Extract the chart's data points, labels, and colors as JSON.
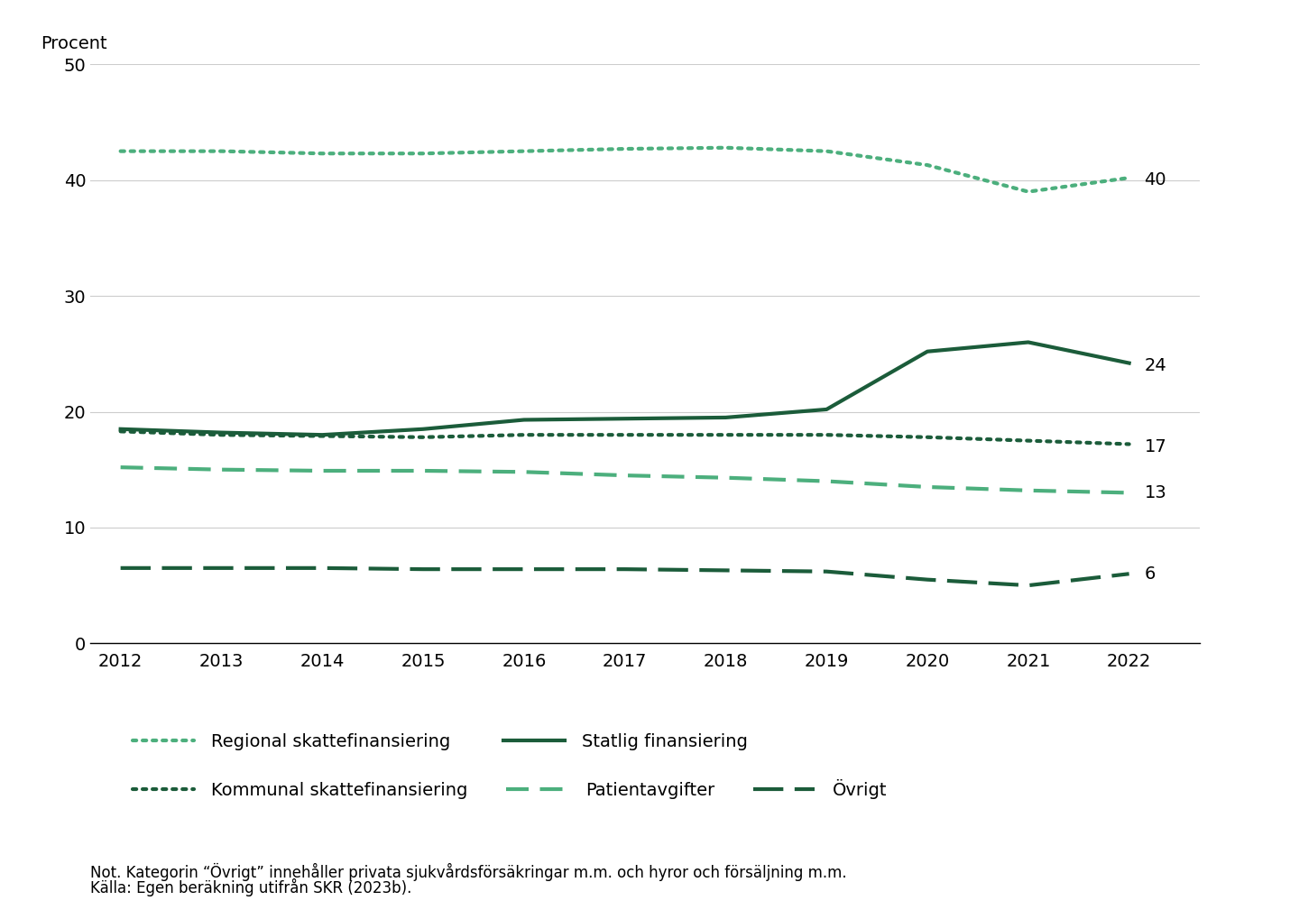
{
  "years": [
    2012,
    2013,
    2014,
    2015,
    2016,
    2017,
    2018,
    2019,
    2020,
    2021,
    2022
  ],
  "regional_skatt": [
    42.5,
    42.5,
    42.3,
    42.3,
    42.5,
    42.7,
    42.8,
    42.5,
    41.3,
    39.0,
    40.2
  ],
  "statlig": [
    18.5,
    18.2,
    18.0,
    18.5,
    19.3,
    19.4,
    19.5,
    20.2,
    25.2,
    26.0,
    24.2
  ],
  "kommunal_skatt": [
    18.3,
    18.0,
    17.9,
    17.8,
    18.0,
    18.0,
    18.0,
    18.0,
    17.8,
    17.5,
    17.2
  ],
  "patientavgifter": [
    15.2,
    15.0,
    14.9,
    14.9,
    14.8,
    14.5,
    14.3,
    14.0,
    13.5,
    13.2,
    13.0
  ],
  "ovrigt": [
    6.5,
    6.5,
    6.5,
    6.4,
    6.4,
    6.4,
    6.3,
    6.2,
    5.5,
    5.0,
    6.0
  ],
  "end_labels": {
    "regional_skatt": "40",
    "statlig": "24",
    "kommunal_skatt": "17",
    "patientavgifter": "13",
    "ovrigt": "6"
  },
  "end_label_vals": {
    "regional_skatt": 40,
    "statlig": 24,
    "kommunal_skatt": 17,
    "patientavgifter": 13,
    "ovrigt": 6
  },
  "color_light_green": "#4CAF7D",
  "color_dark_green": "#1B5C3A",
  "ylabel": "Procent",
  "ylim": [
    0,
    50
  ],
  "yticks": [
    0,
    10,
    20,
    30,
    40,
    50
  ],
  "note_line1": "Not. Kategorin “Övrigt” innehåller privata sjukvårdsförsäkringar m.m. och hyror och försäljning m.m.",
  "note_line2": "Källa: Egen beräkning utifrån SKR (2023b).",
  "legend_row1": [
    {
      "label": "Regional skattefinansiering",
      "color_key": "color_light_green",
      "linestyle": "dotted",
      "lw": 3.0
    },
    {
      "label": "Statlig finansiering",
      "color_key": "color_dark_green",
      "linestyle": "solid",
      "lw": 3.0
    }
  ],
  "legend_row2": [
    {
      "label": "Kommunal skattefinansiering",
      "color_key": "color_dark_green",
      "linestyle": "dotted",
      "lw": 3.0
    },
    {
      "label": "Patientavgifter",
      "color_key": "color_light_green",
      "linestyle": "dashed",
      "lw": 3.0
    },
    {
      "label": "Övrigt",
      "color_key": "color_dark_green",
      "linestyle": "dashed",
      "lw": 3.0
    }
  ]
}
